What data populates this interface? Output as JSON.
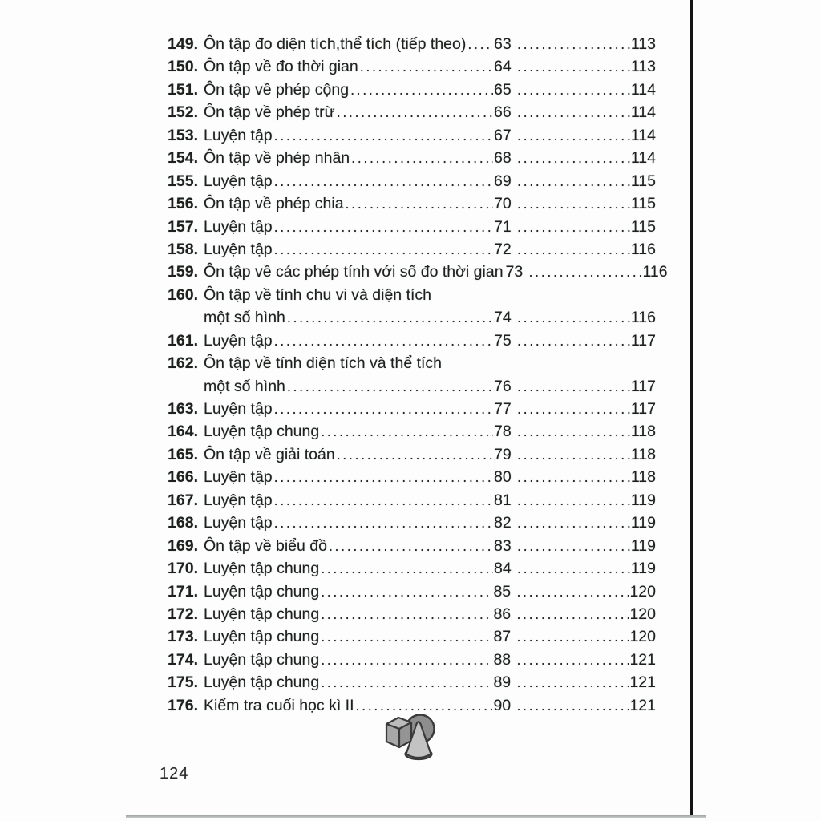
{
  "page": {
    "footer_page_number": "124"
  },
  "toc": {
    "entries": [
      {
        "num": "149.",
        "title": "Ôn tập đo diện tích,thể tích (tiếp theo) ",
        "title2": null,
        "page1": "63",
        "page2": "113"
      },
      {
        "num": "150.",
        "title": "Ôn tập về đo thời gian ",
        "title2": null,
        "page1": "64",
        "page2": "113"
      },
      {
        "num": "151.",
        "title": "Ôn tập về phép cộng",
        "title2": null,
        "page1": "65",
        "page2": "114"
      },
      {
        "num": "152.",
        "title": "Ôn tập về phép trừ",
        "title2": null,
        "page1": "66",
        "page2": "114"
      },
      {
        "num": "153.",
        "title": "Luyện tập ",
        "title2": null,
        "page1": "67",
        "page2": "114"
      },
      {
        "num": "154.",
        "title": "Ôn tập về phép nhân",
        "title2": null,
        "page1": "68",
        "page2": "114"
      },
      {
        "num": "155.",
        "title": "Luyện tập ",
        "title2": null,
        "page1": "69",
        "page2": "115"
      },
      {
        "num": "156.",
        "title": "Ôn tập về phép chia ",
        "title2": null,
        "page1": "70",
        "page2": "115"
      },
      {
        "num": "157.",
        "title": "Luyện tập ",
        "title2": null,
        "page1": "71",
        "page2": "115"
      },
      {
        "num": "158.",
        "title": "Luyện tập  ",
        "title2": null,
        "page1": "72",
        "page2": "116"
      },
      {
        "num": "159.",
        "title": "Ôn tập về các phép tính với số đo thời gian",
        "title2": null,
        "page1": "73",
        "page2": "116"
      },
      {
        "num": "160.",
        "title": "Ôn tập về tính chu vi và diện tích",
        "title2": "một số hình",
        "page1": "74",
        "page2": "116"
      },
      {
        "num": "161.",
        "title": "Luyện tập ",
        "title2": null,
        "page1": "75",
        "page2": "117"
      },
      {
        "num": "162.",
        "title": "Ôn tập về tính diện tích và thể tích",
        "title2": "một số hình",
        "page1": "76",
        "page2": "117"
      },
      {
        "num": "163.",
        "title": "Luyện tập  ",
        "title2": null,
        "page1": "77",
        "page2": "117"
      },
      {
        "num": "164.",
        "title": "Luyện tập chung",
        "title2": null,
        "page1": "78",
        "page2": "118"
      },
      {
        "num": "165.",
        "title": "Ôn tập về giải toán ",
        "title2": null,
        "page1": "79",
        "page2": "118"
      },
      {
        "num": "166.",
        "title": "Luyện tập ",
        "title2": null,
        "page1": "80",
        "page2": "118"
      },
      {
        "num": "167.",
        "title": "Luyện tập ",
        "title2": null,
        "page1": "81",
        "page2": "119"
      },
      {
        "num": "168.",
        "title": "Luyện tập ",
        "title2": null,
        "page1": "82",
        "page2": "119"
      },
      {
        "num": "169.",
        "title": "Ôn tập về biểu đồ",
        "title2": null,
        "page1": "83",
        "page2": "119"
      },
      {
        "num": "170.",
        "title": "Luyện tập chung",
        "title2": null,
        "page1": "84",
        "page2": "119"
      },
      {
        "num": "171.",
        "title": "Luyện tập chung ",
        "title2": null,
        "page1": "85",
        "page2": "120"
      },
      {
        "num": "172.",
        "title": "Luyện tập chung ",
        "title2": null,
        "page1": "86",
        "page2": "120"
      },
      {
        "num": "173.",
        "title": "Luyện tập chung",
        "title2": null,
        "page1": "87",
        "page2": "120"
      },
      {
        "num": "174.",
        "title": "Luyện tập chung",
        "title2": null,
        "page1": "88",
        "page2": "121"
      },
      {
        "num": "175.",
        "title": "Luyện tập chung",
        "title2": null,
        "page1": "89",
        "page2": "121"
      },
      {
        "num": "176.",
        "title": "Kiểm tra cuối học kì II",
        "title2": null,
        "page1": "90",
        "page2": "121"
      }
    ]
  },
  "logo": {
    "icon": "cube-sphere-cone-logo",
    "colors": {
      "cube_top": "#bcbcbc",
      "cube_left": "#a8a8a8",
      "cube_right": "#949494",
      "sphere": "#8d8d8d",
      "cone": "#c3c3c3",
      "cone_base": "#b4b4b4",
      "outline": "#3a3a3a"
    }
  },
  "colors": {
    "text": "#1d211e",
    "page_background": "#fdfdfd",
    "right_edge_line": "#141414",
    "bottom_edge_shadow": "#8f9494"
  }
}
